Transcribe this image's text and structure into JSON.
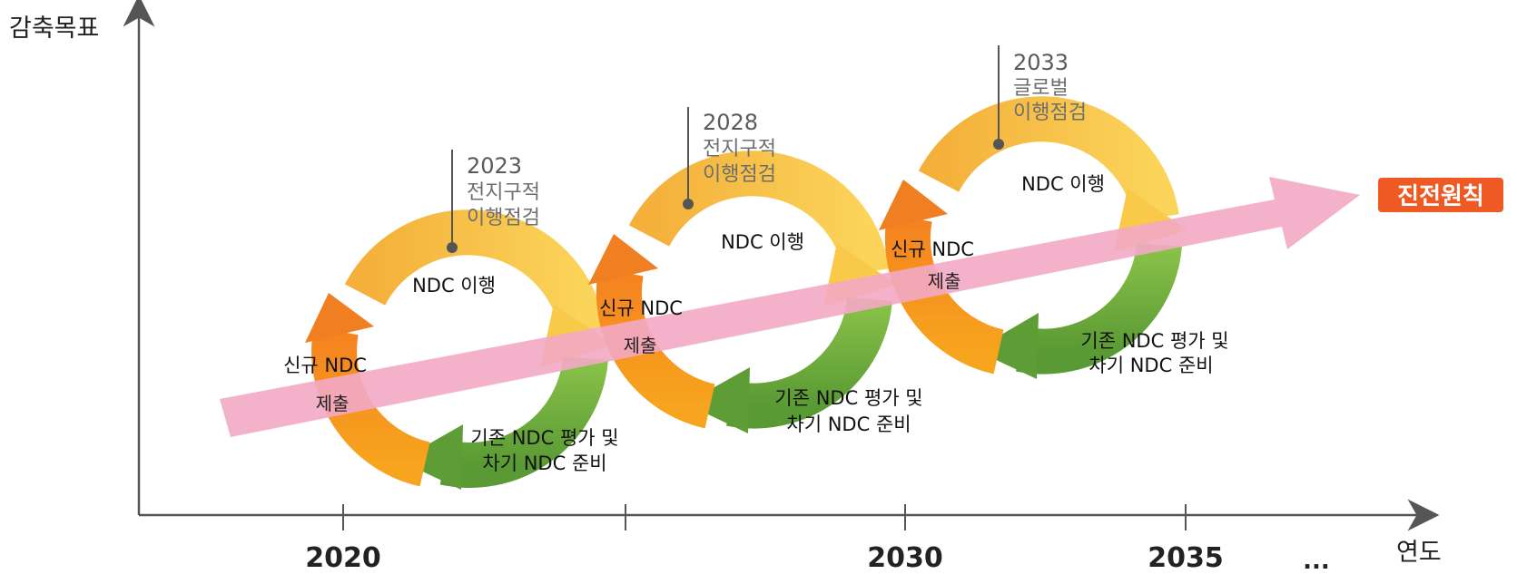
{
  "axes": {
    "y_title": "감축목표",
    "x_title": "연도",
    "ticks": [
      "2020",
      "",
      "2030",
      "2035"
    ],
    "ellipsis": "..."
  },
  "cycle_labels": {
    "implement": "NDC 이행",
    "new_submit_1": "신규 NDC",
    "new_submit_2": "제출",
    "evaluate_1": "기존 NDC 평가 및",
    "evaluate_2": "차기 NDC 준비"
  },
  "checkpoints": [
    {
      "year": "2023",
      "line1": "전지구적",
      "line2": "이행점검"
    },
    {
      "year": "2028",
      "line1": "전지구적",
      "line2": "이행점검"
    },
    {
      "year": "2033",
      "line1": "글로벌",
      "line2": "이행점검"
    }
  ],
  "progress": {
    "label": "진전원칙"
  },
  "colors": {
    "axis": "#555555",
    "ring_yellow": "#f6c23e",
    "ring_orange": "#ef7b22",
    "ring_green": "#6aa640",
    "progress_arrow": "#f3a8c4",
    "progress_label_bg": "#ef5a24",
    "checkpoint_text": "#6e6e6e"
  }
}
